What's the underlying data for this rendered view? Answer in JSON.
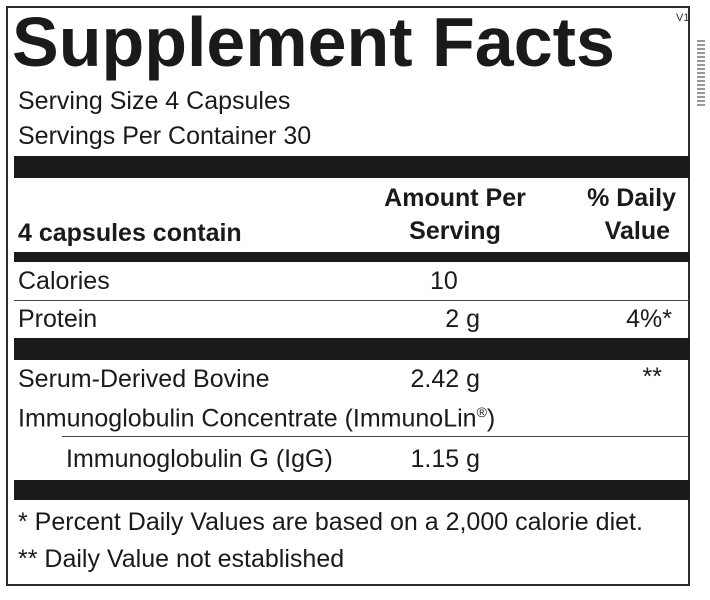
{
  "label": {
    "title": "Supplement Facts",
    "version": "V1",
    "serving_size": "Serving Size 4 Capsules",
    "servings_per_container": "Servings Per Container 30",
    "header": {
      "contents_label": "4 capsules contain",
      "amount_line1": "Amount Per",
      "amount_line2": "Serving",
      "dv_line1": "% Daily",
      "dv_line2": "Value"
    },
    "rows": [
      {
        "name": "Calories",
        "amount": "10",
        "dv": ""
      },
      {
        "name": "Protein",
        "amount": "2 g",
        "dv": "4%*"
      }
    ],
    "ingredient": {
      "name_line1": "Serum-Derived Bovine",
      "name_line2": "Immunoglobulin Concentrate (ImmunoLin",
      "registered": "®",
      "name_line2_end": ")",
      "amount": "2.42 g",
      "dv": "**"
    },
    "sub_ingredient": {
      "name": "Immunoglobulin G (IgG)",
      "amount": "1.15 g"
    },
    "footnotes": [
      "* Percent Daily Values are based on a 2,000 calorie diet.",
      "** Daily Value not established"
    ]
  }
}
